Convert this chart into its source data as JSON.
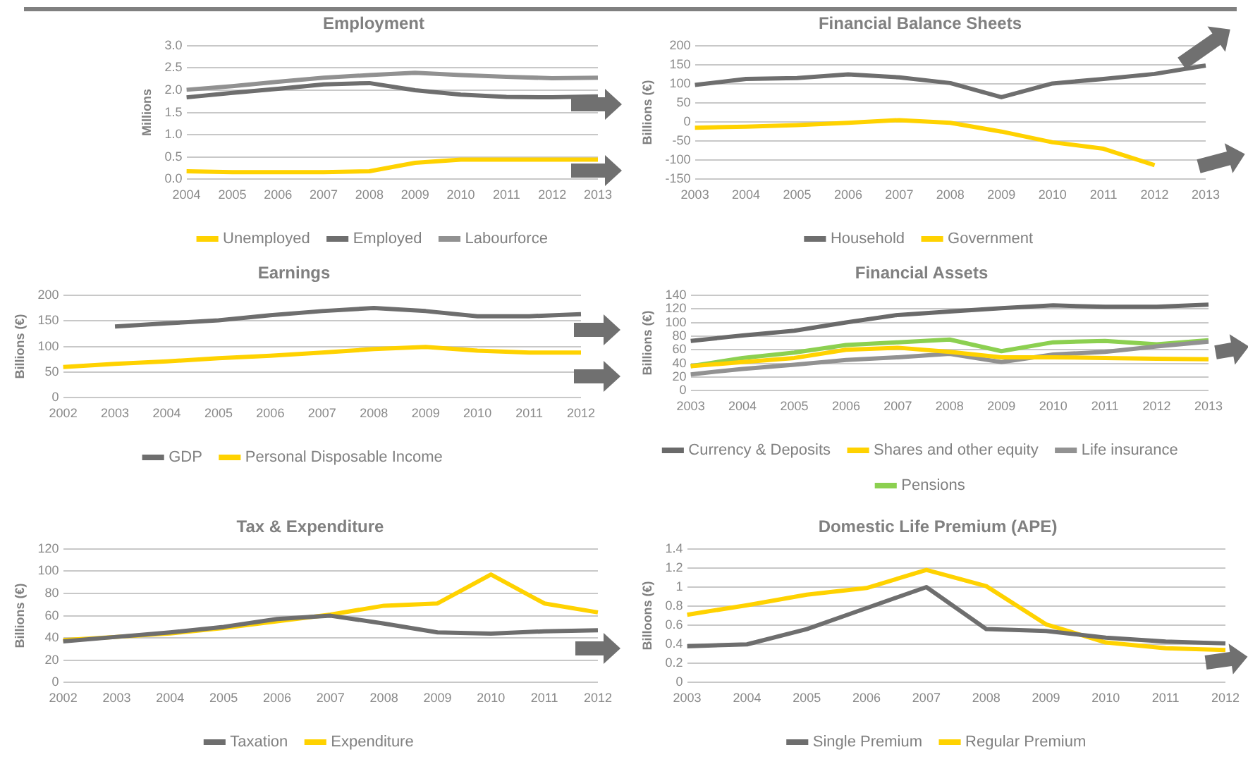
{
  "chart_data": [
    {
      "type": "line",
      "title": "Employment",
      "ylabel": "Millions",
      "categories": [
        "2004",
        "2005",
        "2006",
        "2007",
        "2008",
        "2009",
        "2010",
        "2011",
        "2012",
        "2013"
      ],
      "series": [
        {
          "name": "Unemployed",
          "color": "#ffd200",
          "values": [
            0.18,
            0.16,
            0.16,
            0.16,
            0.18,
            0.37,
            0.44,
            0.44,
            0.44,
            0.44
          ]
        },
        {
          "name": "Employed",
          "color": "#6e6e6e",
          "values": [
            1.84,
            1.94,
            2.03,
            2.13,
            2.16,
            2.0,
            1.9,
            1.85,
            1.84,
            1.86
          ]
        },
        {
          "name": "Labourforce",
          "color": "#919191",
          "values": [
            2.01,
            2.09,
            2.19,
            2.28,
            2.34,
            2.39,
            2.34,
            2.3,
            2.27,
            2.28
          ]
        }
      ],
      "ylim": [
        0,
        3
      ],
      "yticks": [
        {
          "value": 0,
          "label": "0.0"
        },
        {
          "value": 0.5,
          "label": "0.5"
        },
        {
          "value": 1,
          "label": "1.0"
        },
        {
          "value": 1.5,
          "label": "1.5"
        },
        {
          "value": 2,
          "label": "2.0"
        },
        {
          "value": 2.5,
          "label": "2.5"
        },
        {
          "value": 3,
          "label": "3.0"
        }
      ],
      "grid": "y",
      "legend": "bottom",
      "marker": "none"
    },
    {
      "type": "line",
      "title": "Financial Balance Sheets",
      "ylabel": "Billions (€)",
      "categories": [
        "2003",
        "2004",
        "2005",
        "2006",
        "2007",
        "2008",
        "2009",
        "2010",
        "2011",
        "2012",
        "2013"
      ],
      "series": [
        {
          "name": "Household",
          "color": "#6e6e6e",
          "values": [
            97,
            113,
            115,
            125,
            117,
            102,
            65,
            101,
            113,
            126,
            148
          ]
        },
        {
          "name": "Government",
          "color": "#ffd200",
          "values": [
            -15,
            -12,
            -8,
            -2,
            5,
            -2,
            -25,
            -53,
            -70,
            -113,
            null
          ]
        }
      ],
      "ylim": [
        -150,
        200
      ],
      "yticks": [
        -150,
        -100,
        -50,
        0,
        50,
        100,
        150,
        200
      ],
      "grid": "y",
      "legend": "bottom",
      "marker": "none"
    },
    {
      "type": "line",
      "title": "Earnings",
      "ylabel": "Billions (€)",
      "categories": [
        "2002",
        "2003",
        "2004",
        "2005",
        "2006",
        "2007",
        "2008",
        "2009",
        "2010",
        "2011",
        "2012"
      ],
      "series": [
        {
          "name": "GDP",
          "color": "#6e6e6e",
          "values": [
            null,
            139,
            145,
            151,
            161,
            169,
            175,
            169,
            159,
            159,
            163
          ]
        },
        {
          "name": "Personal Disposable Income",
          "color": "#ffd200",
          "values": [
            60,
            66,
            71,
            77,
            82,
            88,
            95,
            99,
            92,
            88,
            88
          ]
        }
      ],
      "ylim": [
        0,
        200
      ],
      "yticks": [
        0,
        50,
        100,
        150,
        200
      ],
      "grid": "y",
      "legend": "bottom",
      "marker": "none"
    },
    {
      "type": "line",
      "title": "Financial Assets",
      "ylabel": "Billions (€)",
      "categories": [
        "2003",
        "2004",
        "2005",
        "2006",
        "2007",
        "2008",
        "2009",
        "2010",
        "2011",
        "2012",
        "2013"
      ],
      "series": [
        {
          "name": "Currency & Deposits",
          "color": "#6a6a6a",
          "values": [
            73,
            81,
            88,
            100,
            111,
            116,
            121,
            125,
            123,
            123,
            126
          ]
        },
        {
          "name": "Shares and other equity",
          "color": "#ffd200",
          "values": [
            36,
            42,
            48,
            60,
            63,
            57,
            49,
            49,
            48,
            47,
            46
          ]
        },
        {
          "name": "Life insurance",
          "color": "#929292",
          "values": [
            24,
            32,
            38,
            45,
            49,
            54,
            42,
            53,
            57,
            65,
            72
          ]
        },
        {
          "name": "Pensions",
          "color": "#8cd050",
          "values": [
            36,
            48,
            56,
            67,
            71,
            75,
            58,
            71,
            73,
            68,
            74
          ]
        }
      ],
      "ylim": [
        0,
        140
      ],
      "yticks": [
        0,
        20,
        40,
        60,
        80,
        100,
        120,
        140
      ],
      "grid": "y",
      "legend": "bottom",
      "marker": "none"
    },
    {
      "type": "line",
      "title": "Tax & Expenditure",
      "ylabel": "Billions (€)",
      "categories": [
        "2002",
        "2003",
        "2004",
        "2005",
        "2006",
        "2007",
        "2008",
        "2009",
        "2010",
        "2011",
        "2012"
      ],
      "series": [
        {
          "name": "Taxation",
          "color": "#6e6e6e",
          "values": [
            37,
            41,
            45,
            50,
            57,
            60,
            53,
            45,
            44,
            46,
            47
          ]
        },
        {
          "name": "Expenditure",
          "color": "#ffd200",
          "values": [
            38,
            41,
            44,
            49,
            55,
            61,
            69,
            71,
            97,
            71,
            63
          ]
        }
      ],
      "ylim": [
        0,
        120
      ],
      "yticks": [
        0,
        20,
        40,
        60,
        80,
        100,
        120
      ],
      "grid": "y",
      "legend": "bottom",
      "marker": "none"
    },
    {
      "type": "line",
      "title": "Domestic Life Premium (APE)",
      "ylabel": "Billoons (€)",
      "categories": [
        "2003",
        "2004",
        "2005",
        "2006",
        "2007",
        "2008",
        "2009",
        "2010",
        "2011",
        "2012"
      ],
      "series": [
        {
          "name": "Single Premium",
          "color": "#6e6e6e",
          "values": [
            0.38,
            0.4,
            0.56,
            0.78,
            1.0,
            0.56,
            0.54,
            0.47,
            0.43,
            0.41
          ]
        },
        {
          "name": "Regular Premium",
          "color": "#ffd200",
          "values": [
            0.71,
            0.81,
            0.92,
            0.99,
            1.18,
            1.01,
            0.61,
            0.42,
            0.36,
            0.34
          ]
        }
      ],
      "ylim": [
        0,
        1.4
      ],
      "yticks": [
        0,
        0.2,
        0.4,
        0.6,
        0.8,
        1,
        1.2,
        1.4
      ],
      "grid": "y",
      "legend": "bottom",
      "marker": "none"
    }
  ]
}
